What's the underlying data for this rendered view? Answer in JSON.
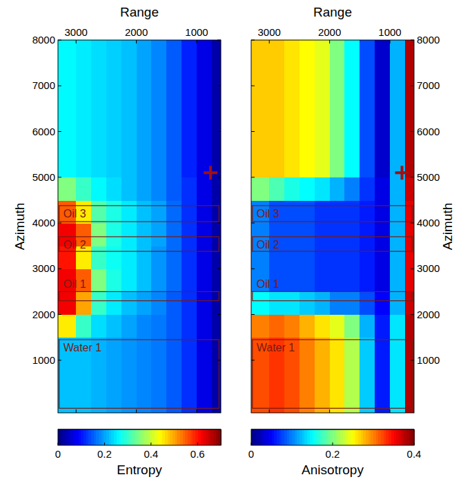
{
  "chart_data": [
    {
      "type": "heatmap",
      "xlabel": "Range",
      "ylabel": "Azimuth",
      "xlim": [
        3300,
        600
      ],
      "xticks": [
        3000,
        2000,
        1000
      ],
      "ylim": [
        -150,
        8000
      ],
      "yticks": [
        1000,
        2000,
        3000,
        4000,
        5000,
        6000,
        7000,
        8000
      ],
      "x_edges": [
        3300,
        3000,
        2750,
        2500,
        2250,
        2000,
        1750,
        1500,
        1250,
        1000,
        750,
        600
      ],
      "y_edges": [
        -150,
        500,
        1000,
        1500,
        2000,
        2500,
        3000,
        3500,
        4000,
        4500,
        5000,
        5500,
        6000,
        6500,
        7000,
        7500,
        8000
      ],
      "cells": [
        [
          0.22,
          0.22,
          0.21,
          0.2,
          0.19,
          0.18,
          0.17,
          0.15,
          0.12,
          0.07,
          0.03
        ],
        [
          0.22,
          0.22,
          0.21,
          0.2,
          0.19,
          0.18,
          0.17,
          0.15,
          0.12,
          0.07,
          0.03
        ],
        [
          0.22,
          0.22,
          0.21,
          0.2,
          0.19,
          0.18,
          0.17,
          0.15,
          0.12,
          0.07,
          0.03
        ],
        [
          0.45,
          0.3,
          0.24,
          0.22,
          0.2,
          0.18,
          0.17,
          0.15,
          0.12,
          0.07,
          0.03
        ],
        [
          0.62,
          0.5,
          0.3,
          0.25,
          0.22,
          0.2,
          0.18,
          0.15,
          0.12,
          0.07,
          0.03
        ],
        [
          0.62,
          0.55,
          0.35,
          0.28,
          0.25,
          0.22,
          0.19,
          0.16,
          0.12,
          0.07,
          0.03
        ],
        [
          0.6,
          0.45,
          0.3,
          0.27,
          0.25,
          0.22,
          0.19,
          0.16,
          0.12,
          0.07,
          0.03
        ],
        [
          0.62,
          0.55,
          0.35,
          0.28,
          0.25,
          0.22,
          0.2,
          0.16,
          0.12,
          0.07,
          0.03
        ],
        [
          0.55,
          0.45,
          0.32,
          0.28,
          0.25,
          0.22,
          0.2,
          0.16,
          0.12,
          0.07,
          0.03
        ],
        [
          0.35,
          0.3,
          0.26,
          0.24,
          0.22,
          0.2,
          0.18,
          0.15,
          0.12,
          0.07,
          0.03
        ],
        [
          0.26,
          0.25,
          0.24,
          0.23,
          0.22,
          0.2,
          0.18,
          0.15,
          0.11,
          0.07,
          0.03
        ],
        [
          0.26,
          0.25,
          0.24,
          0.23,
          0.22,
          0.2,
          0.18,
          0.15,
          0.11,
          0.07,
          0.03
        ],
        [
          0.26,
          0.25,
          0.24,
          0.23,
          0.22,
          0.2,
          0.18,
          0.15,
          0.11,
          0.07,
          0.03
        ],
        [
          0.26,
          0.25,
          0.24,
          0.23,
          0.22,
          0.2,
          0.18,
          0.15,
          0.11,
          0.07,
          0.03
        ],
        [
          0.26,
          0.25,
          0.24,
          0.23,
          0.22,
          0.2,
          0.18,
          0.15,
          0.11,
          0.07,
          0.03
        ],
        [
          0.26,
          0.25,
          0.24,
          0.23,
          0.22,
          0.2,
          0.18,
          0.15,
          0.11,
          0.07,
          0.03
        ]
      ],
      "colorbar": {
        "label": "Entropy",
        "range": [
          0,
          0.7
        ],
        "ticks": [
          0,
          0.2,
          0.4,
          0.6
        ]
      },
      "annotations": [
        {
          "text": "Oil 3",
          "x_range": [
            3280,
            630
          ],
          "y_range": [
            4030,
            4380
          ]
        },
        {
          "text": "Oil 2",
          "x_range": [
            3280,
            630
          ],
          "y_range": [
            3380,
            3700
          ]
        },
        {
          "text": "Oil 1",
          "x_range": [
            3280,
            630
          ],
          "y_range": [
            2300,
            2500
          ]
        },
        {
          "text": "Water 1",
          "x_range": [
            3280,
            630
          ],
          "y_range": [
            -50,
            1450
          ]
        }
      ],
      "markers": [
        {
          "x": 770,
          "y": 5100,
          "marker": "plus"
        }
      ]
    },
    {
      "type": "heatmap",
      "xlabel": "Range",
      "ylabel": "Azimuth",
      "xlim": [
        3300,
        600
      ],
      "xticks": [
        3000,
        2000,
        1000
      ],
      "ylim": [
        -150,
        8000
      ],
      "yticks": [
        1000,
        2000,
        3000,
        4000,
        5000,
        6000,
        7000,
        8000
      ],
      "x_edges": [
        3300,
        3000,
        2750,
        2500,
        2250,
        2000,
        1750,
        1500,
        1250,
        1000,
        750,
        600
      ],
      "y_edges": [
        -150,
        500,
        1000,
        1500,
        2000,
        2500,
        3000,
        3500,
        4000,
        4500,
        5000,
        5500,
        6000,
        6500,
        7000,
        7500,
        8000
      ],
      "cells": [
        [
          0.32,
          0.33,
          0.32,
          0.3,
          0.28,
          0.26,
          0.22,
          0.13,
          0.06,
          0.14,
          0.38
        ],
        [
          0.32,
          0.33,
          0.32,
          0.3,
          0.28,
          0.26,
          0.22,
          0.13,
          0.06,
          0.14,
          0.38
        ],
        [
          0.32,
          0.33,
          0.32,
          0.3,
          0.28,
          0.26,
          0.22,
          0.13,
          0.06,
          0.14,
          0.38
        ],
        [
          0.3,
          0.31,
          0.3,
          0.28,
          0.26,
          0.24,
          0.2,
          0.12,
          0.06,
          0.14,
          0.38
        ],
        [
          0.15,
          0.14,
          0.14,
          0.13,
          0.12,
          0.1,
          0.1,
          0.08,
          0.05,
          0.12,
          0.37
        ],
        [
          0.1,
          0.08,
          0.08,
          0.08,
          0.07,
          0.07,
          0.07,
          0.06,
          0.04,
          0.12,
          0.36
        ],
        [
          0.1,
          0.08,
          0.08,
          0.08,
          0.07,
          0.07,
          0.07,
          0.06,
          0.04,
          0.12,
          0.36
        ],
        [
          0.1,
          0.08,
          0.08,
          0.08,
          0.07,
          0.07,
          0.07,
          0.06,
          0.04,
          0.12,
          0.36
        ],
        [
          0.1,
          0.08,
          0.08,
          0.08,
          0.07,
          0.07,
          0.07,
          0.06,
          0.04,
          0.12,
          0.36
        ],
        [
          0.2,
          0.18,
          0.16,
          0.15,
          0.14,
          0.12,
          0.1,
          0.07,
          0.04,
          0.12,
          0.37
        ],
        [
          0.27,
          0.27,
          0.26,
          0.25,
          0.24,
          0.2,
          0.15,
          0.08,
          0.03,
          0.12,
          0.38
        ],
        [
          0.27,
          0.27,
          0.26,
          0.25,
          0.24,
          0.2,
          0.15,
          0.08,
          0.03,
          0.12,
          0.38
        ],
        [
          0.27,
          0.27,
          0.26,
          0.25,
          0.24,
          0.2,
          0.15,
          0.08,
          0.03,
          0.12,
          0.38
        ],
        [
          0.27,
          0.27,
          0.26,
          0.25,
          0.24,
          0.2,
          0.15,
          0.08,
          0.03,
          0.12,
          0.38
        ],
        [
          0.27,
          0.27,
          0.26,
          0.25,
          0.24,
          0.2,
          0.15,
          0.08,
          0.03,
          0.12,
          0.38
        ],
        [
          0.27,
          0.27,
          0.26,
          0.25,
          0.24,
          0.2,
          0.15,
          0.08,
          0.03,
          0.12,
          0.38
        ]
      ],
      "colorbar": {
        "label": "Anisotropy",
        "range": [
          0,
          0.4
        ],
        "ticks": [
          0,
          0.2,
          0.4
        ]
      },
      "annotations": [
        {
          "text": "Oil 3",
          "x_range": [
            3280,
            630
          ],
          "y_range": [
            4030,
            4380
          ]
        },
        {
          "text": "Oil 2",
          "x_range": [
            3280,
            630
          ],
          "y_range": [
            3380,
            3700
          ]
        },
        {
          "text": "Oil 1",
          "x_range": [
            3280,
            630
          ],
          "y_range": [
            2300,
            2500
          ]
        },
        {
          "text": "Water 1",
          "x_range": [
            3280,
            630
          ],
          "y_range": [
            -50,
            1450
          ]
        }
      ],
      "markers": [
        {
          "x": 800,
          "y": 5100,
          "marker": "plus"
        }
      ]
    }
  ]
}
